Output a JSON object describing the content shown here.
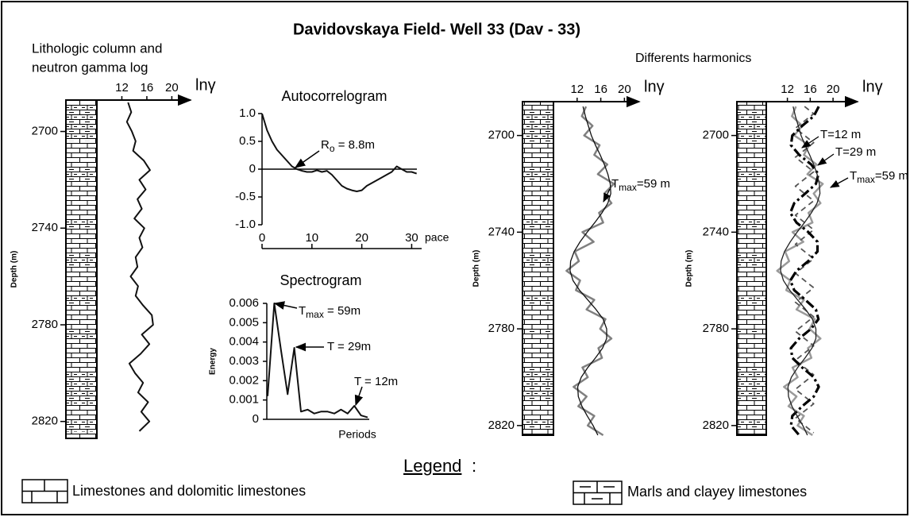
{
  "title": "Davidovskaya Field- Well 33 (Dav - 33)",
  "subtitle": "Differents harmonics",
  "chart_data": [
    {
      "type": "well_log",
      "title": [
        "Lithologic column and",
        "neutron gamma log"
      ],
      "x_label": "lnγ",
      "y_label": "Depth (m)",
      "y_inverted": true,
      "xlim": [
        8,
        23
      ],
      "xticks": [
        12,
        16,
        20
      ],
      "ylim": [
        2687,
        2827
      ],
      "yticks": [
        2700,
        2740,
        2780,
        2820
      ],
      "depth": [
        2688,
        2692,
        2696,
        2700,
        2704,
        2708,
        2712,
        2716,
        2720,
        2724,
        2728,
        2732,
        2736,
        2740,
        2744,
        2748,
        2752,
        2756,
        2760,
        2764,
        2768,
        2772,
        2776,
        2780,
        2784,
        2788,
        2792,
        2796,
        2800,
        2804,
        2808,
        2812,
        2816,
        2820,
        2824
      ],
      "series": [
        {
          "color": "#111111",
          "style": "solid",
          "values": [
            13,
            13.5,
            12.8,
            13.6,
            14.2,
            13.8,
            15.5,
            16.5,
            14.8,
            15.8,
            14.5,
            15.2,
            14,
            15.6,
            14.8,
            15.3,
            14.2,
            14.5,
            13.4,
            14.6,
            14.2,
            15.4,
            16.8,
            17,
            15.2,
            16.4,
            15,
            13.2,
            14.1,
            15.4,
            14.6,
            16.2,
            15.1,
            16.4,
            14.8
          ]
        }
      ],
      "annotations": []
    },
    {
      "type": "line",
      "title": "Autocorrelogram",
      "x_label": "pace",
      "xlim": [
        0,
        32
      ],
      "xticks": [
        0,
        10,
        20,
        30
      ],
      "ylim": [
        -1,
        1
      ],
      "yticks": [
        {
          "value": 1,
          "label": "1.0"
        },
        0.5,
        0,
        -0.5,
        {
          "value": -1,
          "label": "-1.0"
        }
      ],
      "x": [
        0,
        1,
        2,
        3,
        4,
        5,
        6,
        7,
        8,
        9,
        10,
        11,
        12,
        13,
        14,
        15,
        16,
        17,
        18,
        19,
        20,
        21,
        22,
        23,
        24,
        25,
        26,
        27,
        28,
        29,
        30,
        31
      ],
      "color": "#111111",
      "values": [
        1.0,
        0.7,
        0.5,
        0.35,
        0.25,
        0.15,
        0.05,
        0.0,
        -0.03,
        -0.05,
        -0.05,
        -0.02,
        -0.05,
        -0.03,
        -0.1,
        -0.2,
        -0.3,
        -0.35,
        -0.38,
        -0.4,
        -0.38,
        -0.3,
        -0.25,
        -0.2,
        -0.15,
        -0.1,
        -0.05,
        0.05,
        0.0,
        -0.05,
        -0.05,
        -0.08
      ],
      "annotations": [
        {
          "text": "R",
          "sub": "o",
          "rest": " = 8.8m"
        }
      ]
    },
    {
      "type": "line",
      "title": "Spectrogram",
      "x_label": "Periods",
      "y_label": "Energy",
      "ylim": [
        0,
        0.006
      ],
      "yticks": [
        0.006,
        0.005,
        0.004,
        0.003,
        0.002,
        0.001,
        0
      ],
      "color": "#111111",
      "values": [
        0.0012,
        0.006,
        0.0036,
        0.0013,
        0.0037,
        0.0004,
        0.0005,
        0.0003,
        0.0004,
        0.0004,
        0.0003,
        0.0005,
        0.0003,
        0.0007,
        0.0002,
        0.0001
      ],
      "annotations": [
        {
          "text": "T",
          "sub": "max",
          "rest": " = 59m"
        },
        {
          "text": "T = 29m"
        },
        {
          "text": "T = 12m"
        }
      ]
    },
    {
      "type": "well_log",
      "x_label": "lnγ",
      "y_label": "Depth (m)",
      "y_inverted": true,
      "xlim": [
        8,
        22.5
      ],
      "xticks": [
        12,
        16,
        20
      ],
      "ylim": [
        2686,
        2824
      ],
      "yticks": [
        2700,
        2740,
        2780,
        2820
      ],
      "depth": [
        2688,
        2692,
        2696,
        2700,
        2704,
        2708,
        2712,
        2716,
        2720,
        2724,
        2728,
        2732,
        2736,
        2740,
        2744,
        2748,
        2752,
        2756,
        2760,
        2764,
        2768,
        2772,
        2776,
        2780,
        2784,
        2788,
        2792,
        2796,
        2800,
        2804,
        2808,
        2812,
        2816,
        2820,
        2824
      ],
      "series": [
        {
          "color": "#808080",
          "style": "gray",
          "values": [
            13.5,
            12.8,
            14.6,
            13.2,
            15.8,
            14.9,
            17.1,
            15.5,
            18.2,
            16.6,
            17.8,
            15.7,
            16.4,
            12.9,
            14.8,
            11.6,
            12.3,
            10.2,
            12.5,
            11.8,
            14.9,
            13.6,
            16.8,
            15.9,
            17.8,
            15.6,
            16.2,
            12.9,
            13.8,
            11.4,
            13.6,
            12.2,
            14.9,
            13.8,
            16.4
          ]
        },
        {
          "color": "#111111",
          "style": "thin",
          "values": [
            13.0,
            13.4,
            13.9,
            14.4,
            15.1,
            15.9,
            16.6,
            17.2,
            17.6,
            17.7,
            17.2,
            16.2,
            15.0,
            13.7,
            12.5,
            11.5,
            10.9,
            10.8,
            11.3,
            12.4,
            13.8,
            15.2,
            16.4,
            17.0,
            17.0,
            16.3,
            15.1,
            13.8,
            12.7,
            12.1,
            12.2,
            12.8,
            13.7,
            14.7,
            15.5
          ]
        }
      ],
      "annotations": [
        {
          "text": "T",
          "sub": "max",
          "rest": "=59 m"
        }
      ]
    },
    {
      "type": "well_log",
      "x_label": "lnγ",
      "y_label": "Depth (m)",
      "y_inverted": true,
      "xlim": [
        8.3,
        24.3
      ],
      "xticks": [
        12,
        16,
        20
      ],
      "ylim": [
        2686,
        2824
      ],
      "yticks": [
        2700,
        2740,
        2780,
        2820
      ],
      "depth": [
        2688,
        2692,
        2696,
        2700,
        2704,
        2708,
        2712,
        2716,
        2720,
        2724,
        2728,
        2732,
        2736,
        2740,
        2744,
        2748,
        2752,
        2756,
        2760,
        2764,
        2768,
        2772,
        2776,
        2780,
        2784,
        2788,
        2792,
        2796,
        2800,
        2804,
        2808,
        2812,
        2816,
        2820,
        2824
      ],
      "series": [
        {
          "color": "#9a9a9a",
          "style": "gray",
          "values": [
            13.5,
            12.8,
            14.6,
            13.2,
            15.8,
            14.9,
            17.1,
            15.5,
            18.2,
            16.6,
            17.8,
            15.7,
            16.4,
            12.9,
            14.8,
            11.6,
            12.3,
            10.2,
            12.5,
            11.8,
            14.9,
            13.6,
            16.8,
            15.9,
            17.8,
            15.6,
            16.2,
            12.9,
            13.8,
            11.4,
            13.6,
            12.2,
            14.9,
            13.8,
            16.4
          ]
        },
        {
          "color": "#555555",
          "style": "dashed",
          "depth": [
            2688,
            2691,
            2694,
            2697,
            2700,
            2703,
            2706,
            2709,
            2712,
            2715,
            2718,
            2721,
            2724,
            2727,
            2730,
            2733,
            2736,
            2739,
            2742,
            2745,
            2748,
            2751,
            2754,
            2757,
            2760,
            2763,
            2766,
            2769,
            2772,
            2775,
            2778,
            2781,
            2784,
            2787,
            2790,
            2793,
            2796,
            2799,
            2802,
            2805,
            2808,
            2811,
            2814,
            2817,
            2820,
            2823
          ],
          "values": [
            15.0,
            16.6,
            15.0,
            13.4,
            15.0,
            16.6,
            15.0,
            13.4,
            15.0,
            16.6,
            15.0,
            13.4,
            15.0,
            16.6,
            15.0,
            13.4,
            15.0,
            16.6,
            15.0,
            13.4,
            15.0,
            16.6,
            15.0,
            13.4,
            15.0,
            16.6,
            15.0,
            13.4,
            15.0,
            16.6,
            15.0,
            13.4,
            15.0,
            16.6,
            15.0,
            13.4,
            15.0,
            16.6,
            15.0,
            13.4,
            15.0,
            16.6,
            15.0,
            13.4,
            15.0,
            16.6
          ]
        },
        {
          "color": "#000000",
          "style": "bold-dash-dot",
          "values": [
            17.5,
            16.62,
            14.6,
            12.86,
            12.63,
            14.08,
            16.17,
            17.44,
            17.0,
            15.13,
            13.2,
            12.51,
            13.58,
            15.68,
            17.27,
            17.27,
            15.65,
            13.59,
            12.51,
            13.2,
            15.15,
            17.0,
            17.44,
            16.15,
            14.05,
            12.62,
            12.86,
            14.6,
            16.62,
            17.5,
            16.62,
            14.6,
            12.86,
            12.63,
            14.08
          ]
        },
        {
          "color": "#222222",
          "style": "thin",
          "values": [
            13.0,
            13.4,
            13.9,
            14.4,
            15.1,
            15.9,
            16.6,
            17.2,
            17.6,
            17.7,
            17.2,
            16.2,
            15.0,
            13.7,
            12.5,
            11.5,
            10.9,
            10.8,
            11.3,
            12.4,
            13.8,
            15.2,
            16.4,
            17.0,
            17.0,
            16.3,
            15.1,
            13.8,
            12.7,
            12.1,
            12.2,
            12.8,
            13.7,
            14.7,
            15.5
          ]
        }
      ],
      "annotations": [
        {
          "text": "T=12 m"
        },
        {
          "text": "T=29 m"
        },
        {
          "text": "T",
          "sub": "max",
          "rest": "=59 m"
        }
      ]
    }
  ],
  "legend": {
    "title": "Legend",
    "suffix": ":",
    "items": [
      "Limestones and dolomitic limestones",
      "Marls and clayey limestones"
    ]
  }
}
